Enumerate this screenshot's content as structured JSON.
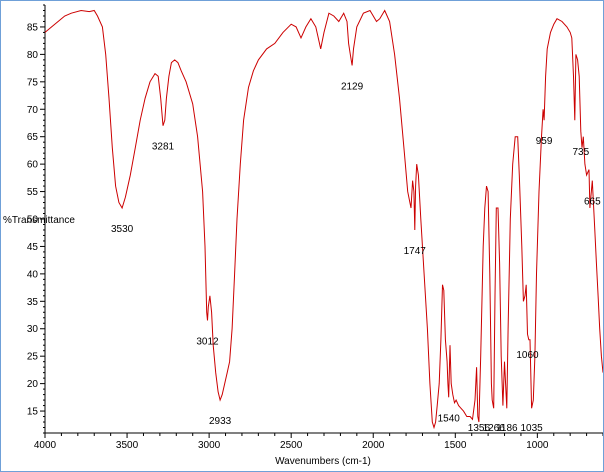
{
  "chart_data": {
    "type": "line",
    "title": "",
    "xlabel": "Wavenumbers (cm-1)",
    "ylabel": "%Transmittance",
    "xlim": [
      4000,
      600
    ],
    "ylim": [
      11,
      89
    ],
    "x_reversed": true,
    "grid": false,
    "line_color": "#cc0000",
    "x_ticks": [
      4000,
      3500,
      3000,
      2500,
      2000,
      1500,
      1000
    ],
    "y_ticks": [
      15,
      20,
      25,
      30,
      35,
      40,
      45,
      50,
      55,
      60,
      65,
      70,
      75,
      80,
      85
    ],
    "series": [
      {
        "name": "",
        "points": [
          [
            4000,
            84.0
          ],
          [
            3960,
            85.0
          ],
          [
            3920,
            86.0
          ],
          [
            3880,
            87.0
          ],
          [
            3840,
            87.5
          ],
          [
            3780,
            88.0
          ],
          [
            3730,
            87.8
          ],
          [
            3700,
            88.0
          ],
          [
            3680,
            87.0
          ],
          [
            3650,
            85.0
          ],
          [
            3630,
            80.0
          ],
          [
            3610,
            72.0
          ],
          [
            3590,
            63.0
          ],
          [
            3570,
            56.0
          ],
          [
            3550,
            53.0
          ],
          [
            3530,
            52.0
          ],
          [
            3510,
            54.0
          ],
          [
            3480,
            58.0
          ],
          [
            3450,
            63.0
          ],
          [
            3420,
            68.0
          ],
          [
            3390,
            72.0
          ],
          [
            3360,
            75.0
          ],
          [
            3330,
            76.5
          ],
          [
            3310,
            76.0
          ],
          [
            3295,
            72.0
          ],
          [
            3281,
            67.0
          ],
          [
            3270,
            68.0
          ],
          [
            3260,
            72.0
          ],
          [
            3245,
            76.0
          ],
          [
            3230,
            78.5
          ],
          [
            3210,
            79.0
          ],
          [
            3190,
            78.5
          ],
          [
            3170,
            77.0
          ],
          [
            3140,
            75.0
          ],
          [
            3100,
            71.0
          ],
          [
            3070,
            65.0
          ],
          [
            3040,
            55.0
          ],
          [
            3025,
            45.0
          ],
          [
            3015,
            33.0
          ],
          [
            3010,
            31.5
          ],
          [
            3005,
            34.0
          ],
          [
            2995,
            36.0
          ],
          [
            2985,
            33.0
          ],
          [
            2975,
            27.0
          ],
          [
            2960,
            22.0
          ],
          [
            2945,
            18.5
          ],
          [
            2933,
            17.0
          ],
          [
            2920,
            18.0
          ],
          [
            2905,
            20.0
          ],
          [
            2890,
            22.0
          ],
          [
            2875,
            24.0
          ],
          [
            2860,
            30.0
          ],
          [
            2845,
            40.0
          ],
          [
            2830,
            50.0
          ],
          [
            2810,
            60.0
          ],
          [
            2790,
            68.0
          ],
          [
            2760,
            74.0
          ],
          [
            2730,
            77.0
          ],
          [
            2700,
            79.0
          ],
          [
            2650,
            81.0
          ],
          [
            2600,
            82.0
          ],
          [
            2550,
            84.0
          ],
          [
            2500,
            85.5
          ],
          [
            2470,
            85.0
          ],
          [
            2440,
            83.0
          ],
          [
            2410,
            85.0
          ],
          [
            2380,
            86.5
          ],
          [
            2350,
            85.0
          ],
          [
            2320,
            81.0
          ],
          [
            2300,
            84.0
          ],
          [
            2270,
            87.5
          ],
          [
            2240,
            87.0
          ],
          [
            2210,
            86.0
          ],
          [
            2180,
            87.5
          ],
          [
            2160,
            86.0
          ],
          [
            2150,
            82.0
          ],
          [
            2140,
            80.0
          ],
          [
            2129,
            78.0
          ],
          [
            2120,
            81.0
          ],
          [
            2100,
            85.0
          ],
          [
            2060,
            87.5
          ],
          [
            2020,
            88.0
          ],
          [
            1980,
            86.0
          ],
          [
            1960,
            86.5
          ],
          [
            1930,
            88.0
          ],
          [
            1900,
            86.0
          ],
          [
            1870,
            80.0
          ],
          [
            1840,
            72.0
          ],
          [
            1810,
            62.0
          ],
          [
            1790,
            55.0
          ],
          [
            1770,
            52.0
          ],
          [
            1760,
            57.0
          ],
          [
            1752,
            55.0
          ],
          [
            1747,
            48.0
          ],
          [
            1742,
            56.0
          ],
          [
            1735,
            60.0
          ],
          [
            1725,
            58.0
          ],
          [
            1710,
            50.0
          ],
          [
            1690,
            40.0
          ],
          [
            1670,
            30.0
          ],
          [
            1655,
            20.0
          ],
          [
            1640,
            13.0
          ],
          [
            1630,
            12.0
          ],
          [
            1620,
            13.0
          ],
          [
            1610,
            16.0
          ],
          [
            1598,
            20.0
          ],
          [
            1588,
            28.0
          ],
          [
            1578,
            38.0
          ],
          [
            1570,
            37.0
          ],
          [
            1560,
            28.0
          ],
          [
            1550,
            24.0
          ],
          [
            1545,
            20.0
          ],
          [
            1540,
            17.5
          ],
          [
            1532,
            27.0
          ],
          [
            1525,
            20.0
          ],
          [
            1515,
            18.0
          ],
          [
            1505,
            16.5
          ],
          [
            1495,
            17.0
          ],
          [
            1480,
            16.0
          ],
          [
            1465,
            15.5
          ],
          [
            1450,
            15.0
          ],
          [
            1430,
            14.0
          ],
          [
            1410,
            14.0
          ],
          [
            1395,
            13.5
          ],
          [
            1380,
            17.0
          ],
          [
            1370,
            23.0
          ],
          [
            1363,
            14.0
          ],
          [
            1356,
            13.0
          ],
          [
            1345,
            25.0
          ],
          [
            1330,
            45.0
          ],
          [
            1320,
            52.0
          ],
          [
            1310,
            56.0
          ],
          [
            1300,
            55.0
          ],
          [
            1290,
            40.0
          ],
          [
            1280,
            20.0
          ],
          [
            1275,
            17.0
          ],
          [
            1266,
            15.5
          ],
          [
            1258,
            36.0
          ],
          [
            1250,
            52.0
          ],
          [
            1240,
            52.0
          ],
          [
            1230,
            42.0
          ],
          [
            1220,
            25.0
          ],
          [
            1210,
            16.0
          ],
          [
            1200,
            24.0
          ],
          [
            1186,
            15.5
          ],
          [
            1178,
            30.0
          ],
          [
            1165,
            50.0
          ],
          [
            1150,
            60.0
          ],
          [
            1135,
            65.0
          ],
          [
            1120,
            65.0
          ],
          [
            1110,
            58.0
          ],
          [
            1095,
            45.0
          ],
          [
            1085,
            35.0
          ],
          [
            1075,
            36.0
          ],
          [
            1068,
            38.0
          ],
          [
            1060,
            29.0
          ],
          [
            1052,
            28.0
          ],
          [
            1045,
            28.0
          ],
          [
            1035,
            15.5
          ],
          [
            1025,
            17.0
          ],
          [
            1015,
            25.0
          ],
          [
            1005,
            40.0
          ],
          [
            990,
            55.0
          ],
          [
            975,
            65.0
          ],
          [
            965,
            70.0
          ],
          [
            959,
            68.0
          ],
          [
            950,
            76.0
          ],
          [
            940,
            81.0
          ],
          [
            920,
            84.0
          ],
          [
            900,
            85.5
          ],
          [
            880,
            86.5
          ],
          [
            850,
            86.0
          ],
          [
            820,
            85.0
          ],
          [
            800,
            84.0
          ],
          [
            790,
            83.0
          ],
          [
            780,
            76.0
          ],
          [
            772,
            68.0
          ],
          [
            765,
            80.0
          ],
          [
            755,
            79.0
          ],
          [
            745,
            76.0
          ],
          [
            735,
            66.0
          ],
          [
            728,
            63.0
          ],
          [
            720,
            65.0
          ],
          [
            710,
            60.0
          ],
          [
            700,
            58.0
          ],
          [
            685,
            59.0
          ],
          [
            680,
            52.0
          ],
          [
            665,
            57.0
          ],
          [
            650,
            48.0
          ],
          [
            640,
            42.0
          ],
          [
            630,
            36.0
          ],
          [
            620,
            30.0
          ],
          [
            610,
            25.0
          ],
          [
            600,
            22.0
          ]
        ]
      }
    ],
    "annotations": [
      {
        "text": "3530",
        "x": 3530,
        "y": 52.0
      },
      {
        "text": "3281",
        "x": 3281,
        "y": 67.0
      },
      {
        "text": "3012",
        "x": 3010,
        "y": 31.5
      },
      {
        "text": "2933",
        "x": 2933,
        "y": 17.0
      },
      {
        "text": "2129",
        "x": 2129,
        "y": 78.0
      },
      {
        "text": "1747",
        "x": 1747,
        "y": 48.0
      },
      {
        "text": "1540",
        "x": 1540,
        "y": 17.5
      },
      {
        "text": "1356",
        "x": 1356,
        "y": 13.0
      },
      {
        "text": "1266",
        "x": 1266,
        "y": 15.5
      },
      {
        "text": "1186",
        "x": 1186,
        "y": 15.5
      },
      {
        "text": "1060",
        "x": 1060,
        "y": 29.0
      },
      {
        "text": "1035",
        "x": 1035,
        "y": 15.5
      },
      {
        "text": "959",
        "x": 959,
        "y": 68.0
      },
      {
        "text": "735",
        "x": 735,
        "y": 66.0
      },
      {
        "text": "665",
        "x": 665,
        "y": 57.0
      }
    ]
  }
}
